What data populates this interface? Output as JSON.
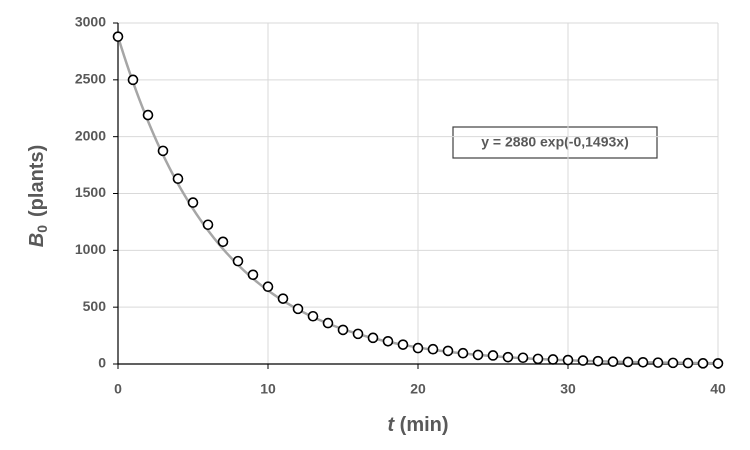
{
  "chart_data": {
    "type": "scatter",
    "x_label": {
      "symbol": "t",
      "unit": "(min)"
    },
    "y_label": {
      "symbol": "B",
      "subscript": "0",
      "unit": "(plants)"
    },
    "x": [
      0,
      1,
      2,
      3,
      4,
      5,
      6,
      7,
      8,
      9,
      10,
      11,
      12,
      13,
      14,
      15,
      16,
      17,
      18,
      19,
      20,
      21,
      22,
      23,
      24,
      25,
      26,
      27,
      28,
      29,
      30,
      31,
      32,
      33,
      34,
      35,
      36,
      37,
      38,
      39,
      40
    ],
    "values": [
      2880,
      2500,
      2190,
      1875,
      1630,
      1420,
      1225,
      1075,
      905,
      785,
      680,
      575,
      485,
      420,
      360,
      300,
      265,
      230,
      200,
      170,
      140,
      130,
      115,
      95,
      80,
      75,
      60,
      55,
      45,
      40,
      35,
      30,
      25,
      20,
      18,
      15,
      12,
      10,
      8,
      6,
      5
    ],
    "trendline": {
      "label": "y = 2880 exp(-0,1493x)",
      "a": 2880,
      "k": -0.1493,
      "color": "#a6a6a6"
    },
    "xlim": [
      0,
      40
    ],
    "xticks": [
      0,
      10,
      20,
      30,
      40
    ],
    "ylim": [
      0,
      3000
    ],
    "yticks": [
      0,
      500,
      1000,
      1500,
      2000,
      2500,
      3000
    ],
    "grid": true,
    "marker_color": "#000000"
  }
}
